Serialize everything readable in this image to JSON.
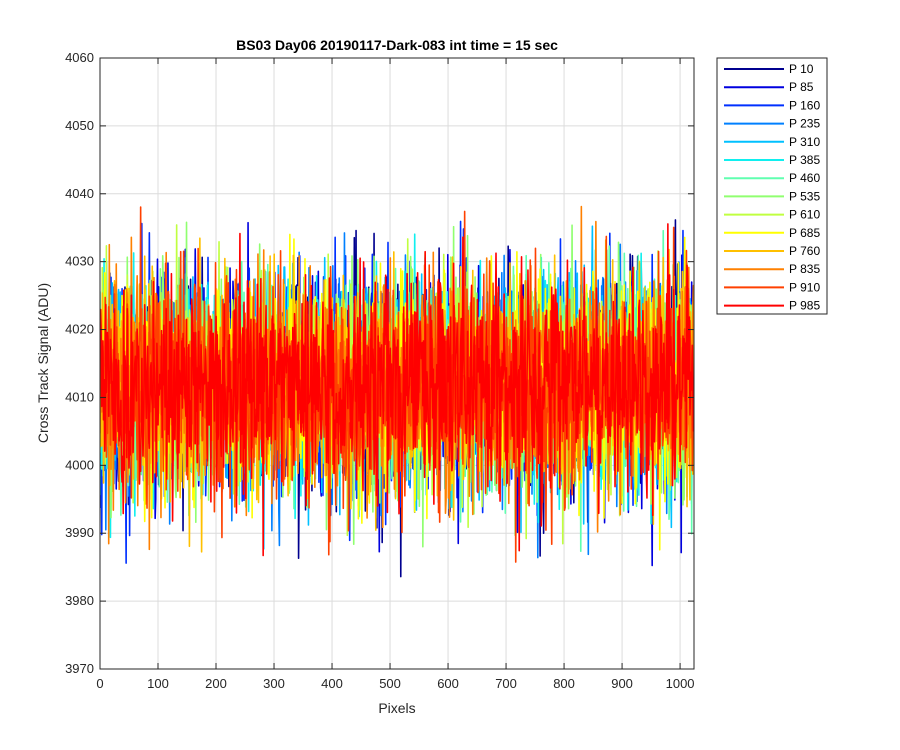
{
  "chart_data": {
    "type": "line",
    "title": "BS03 Day06 20190117-Dark-083 int time = 15 sec",
    "xlabel": "Pixels",
    "ylabel": "Cross Track Signal (ADU)",
    "xlim": [
      0,
      1024
    ],
    "ylim": [
      3970,
      4060
    ],
    "xticks": [
      0,
      100,
      200,
      300,
      400,
      500,
      600,
      700,
      800,
      900,
      1000
    ],
    "yticks": [
      3970,
      3980,
      3990,
      4000,
      4010,
      4020,
      4030,
      4040,
      4050,
      4060
    ],
    "grid": true,
    "legend_position": "outside-top-right",
    "noise_center": 4012,
    "noise_spread": 9,
    "points_per_series": 1024,
    "series": [
      {
        "name": "P 10",
        "color": "#00008f"
      },
      {
        "name": "P 85",
        "color": "#0000df"
      },
      {
        "name": "P 160",
        "color": "#0030ff"
      },
      {
        "name": "P 235",
        "color": "#0080ff"
      },
      {
        "name": "P 310",
        "color": "#00c0ff"
      },
      {
        "name": "P 385",
        "color": "#10efef"
      },
      {
        "name": "P 460",
        "color": "#60ffb0"
      },
      {
        "name": "P 535",
        "color": "#90ff70"
      },
      {
        "name": "P 610",
        "color": "#c0ff40"
      },
      {
        "name": "P 685",
        "color": "#ffff00"
      },
      {
        "name": "P 760",
        "color": "#ffc000"
      },
      {
        "name": "P 835",
        "color": "#ff8000"
      },
      {
        "name": "P 910",
        "color": "#ff4000"
      },
      {
        "name": "P 985",
        "color": "#ff0000"
      }
    ]
  }
}
